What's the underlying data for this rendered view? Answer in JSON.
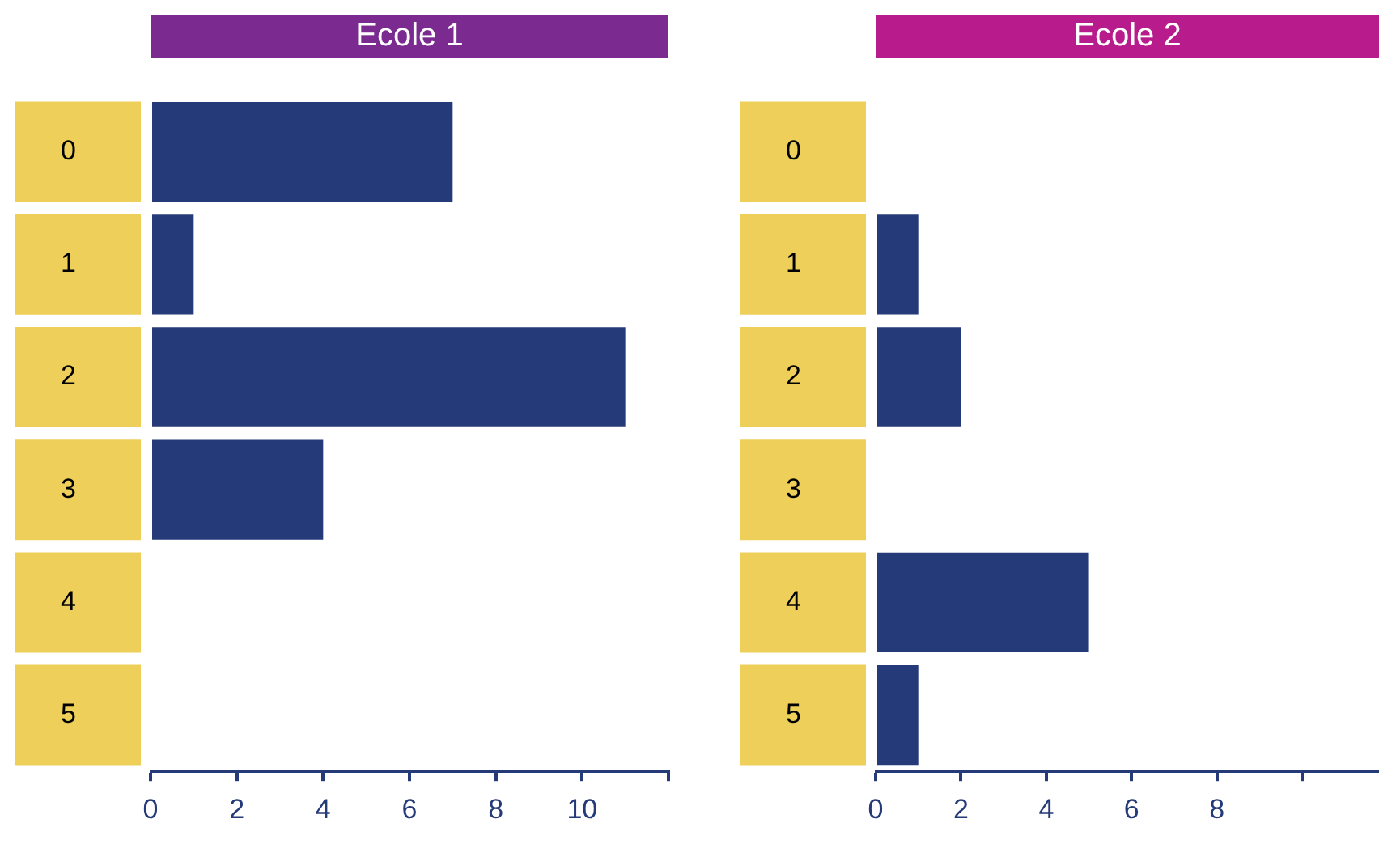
{
  "chart_data": [
    {
      "type": "bar",
      "orientation": "horizontal",
      "title": "Ecole 1",
      "categories": [
        "0",
        "1",
        "2",
        "3",
        "4",
        "5"
      ],
      "values": [
        7,
        1,
        11,
        4,
        0,
        0
      ],
      "color": "#253a78",
      "xlim": [
        0,
        12
      ],
      "xticks": [
        0,
        2,
        4,
        6,
        8,
        10,
        {
          "value": 12,
          "label": null
        }
      ]
    },
    {
      "type": "bar",
      "orientation": "horizontal",
      "title": "Ecole 2",
      "categories": [
        "0",
        "1",
        "2",
        "3",
        "4",
        "5"
      ],
      "values": [
        0,
        1,
        2,
        0,
        5,
        1
      ],
      "color": "#253a78",
      "xlim": [
        0,
        11.8
      ],
      "xticks": [
        0,
        2,
        4,
        6,
        8,
        {
          "value": 10,
          "label": null
        }
      ]
    }
  ]
}
